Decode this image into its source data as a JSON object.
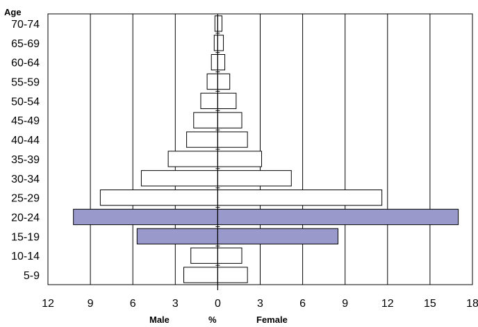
{
  "chart_data": {
    "type": "bar",
    "orientation": "horizontal",
    "layout": "population-pyramid",
    "y_title": "Age",
    "x_title": "%",
    "left_label": "Male",
    "right_label": "Female",
    "categories": [
      "5-9",
      "10-14",
      "15-19",
      "20-24",
      "25-29",
      "30-34",
      "35-39",
      "40-44",
      "45-49",
      "50-54",
      "55-59",
      "60-64",
      "65-69",
      "70-74"
    ],
    "series": [
      {
        "name": "Male",
        "side": "left",
        "values": [
          2.4,
          1.9,
          5.7,
          10.2,
          8.3,
          5.4,
          3.5,
          2.2,
          1.7,
          1.2,
          0.75,
          0.45,
          0.25,
          0.2
        ]
      },
      {
        "name": "Female",
        "side": "right",
        "values": [
          2.1,
          1.7,
          8.5,
          17.0,
          11.6,
          5.2,
          3.1,
          2.1,
          1.7,
          1.3,
          0.85,
          0.5,
          0.4,
          0.3
        ]
      }
    ],
    "highlighted_categories": [
      "15-19",
      "20-24"
    ],
    "xlim": [
      -12,
      18
    ],
    "x_ticks": [
      -12,
      -9,
      -6,
      -3,
      0,
      3,
      6,
      9,
      12,
      15,
      18
    ],
    "x_tick_labels": [
      "12",
      "9",
      "6",
      "3",
      "0",
      "3",
      "6",
      "9",
      "12",
      "15",
      "18"
    ],
    "grid": "vertical",
    "legend": "none",
    "colors": {
      "highlight": "#9999cc",
      "default": "#ffffff",
      "outline": "#000000",
      "grid": "#000000"
    }
  }
}
